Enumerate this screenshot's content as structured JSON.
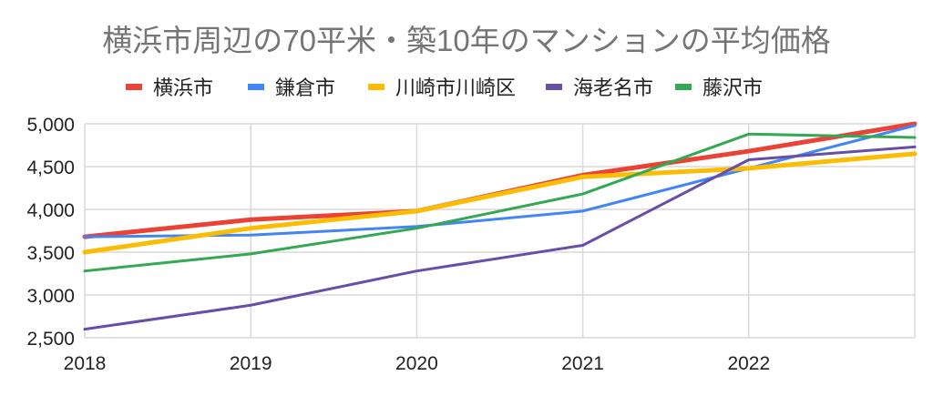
{
  "chart_data": {
    "type": "line",
    "title": "横浜市周辺の70平米・築10年のマンションの平均価格",
    "xlabel": "",
    "ylabel": "",
    "x": [
      2018,
      2019,
      2020,
      2021,
      2022,
      2023
    ],
    "x_tick_labels": [
      "2018",
      "2019",
      "2020",
      "2021",
      "2022"
    ],
    "y_tick_labels": [
      "5,000",
      "4,500",
      "4,000",
      "3,500",
      "3,000",
      "2,500"
    ],
    "y_ticks": [
      5000,
      4500,
      4000,
      3500,
      3000,
      2500
    ],
    "ylim": [
      2500,
      5000
    ],
    "xlim": [
      2018,
      2023
    ],
    "grid": true,
    "legend_position": "top",
    "series": [
      {
        "name": "横浜市",
        "color": "#ea4335",
        "width": 5,
        "values": [
          3680,
          3880,
          3980,
          4400,
          4680,
          5000
        ]
      },
      {
        "name": "鎌倉市",
        "color": "#4285f4",
        "width": 3,
        "values": [
          3680,
          3700,
          3800,
          3980,
          4480,
          4980
        ]
      },
      {
        "name": "川崎市川崎区",
        "color": "#fbbc04",
        "width": 5,
        "values": [
          3500,
          3780,
          3980,
          4380,
          4480,
          4650
        ]
      },
      {
        "name": "海老名市",
        "color": "#674ea7",
        "width": 3,
        "values": [
          2600,
          2880,
          3280,
          3580,
          4580,
          4730
        ]
      },
      {
        "name": "藤沢市",
        "color": "#34a853",
        "width": 3,
        "values": [
          3280,
          3480,
          3780,
          4180,
          4880,
          4840
        ]
      }
    ]
  }
}
